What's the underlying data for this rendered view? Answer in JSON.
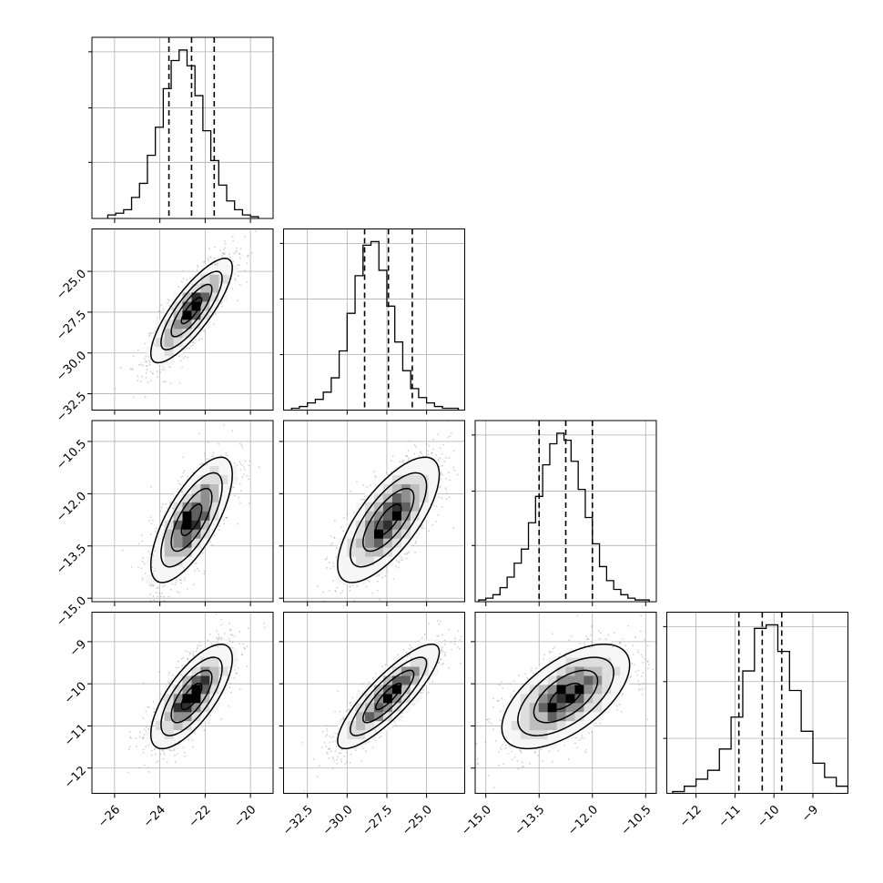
{
  "chart_data": {
    "type": "corner",
    "grid": true,
    "histograms": [
      {
        "param_index": 0,
        "bins": [
          -26.3,
          -25.95,
          -25.6,
          -25.25,
          -24.9,
          -24.55,
          -24.2,
          -23.85,
          -23.5,
          -23.15,
          -22.8,
          -22.45,
          -22.1,
          -21.75,
          -21.4,
          -21.05,
          -20.7,
          -20.35,
          -20.0,
          -19.65
        ],
        "counts": [
          2,
          3,
          5,
          12,
          20,
          36,
          52,
          74,
          90,
          96,
          87,
          70,
          50,
          33,
          19,
          10,
          5,
          2,
          1
        ],
        "quantiles": [
          -23.6,
          -22.6,
          -21.6
        ]
      },
      {
        "param_index": 1,
        "bins": [
          -33.5,
          -33.0,
          -32.5,
          -32.0,
          -31.5,
          -31.0,
          -30.5,
          -30.0,
          -29.5,
          -29.0,
          -28.5,
          -28.0,
          -27.5,
          -27.0,
          -26.5,
          -26.0,
          -25.5,
          -25.0,
          -24.5,
          -24.0,
          -23.5,
          -23.0
        ],
        "counts": [
          1,
          2,
          4,
          6,
          10,
          18,
          33,
          54,
          75,
          92,
          94,
          78,
          58,
          38,
          22,
          12,
          7,
          4,
          2,
          1,
          1
        ],
        "quantiles": [
          -28.9,
          -27.4,
          -25.9
        ]
      },
      {
        "param_index": 2,
        "bins": [
          -15.2,
          -15.0,
          -14.8,
          -14.6,
          -14.4,
          -14.2,
          -14.0,
          -13.8,
          -13.6,
          -13.4,
          -13.2,
          -13.0,
          -12.8,
          -12.6,
          -12.4,
          -12.2,
          -12.0,
          -11.8,
          -11.6,
          -11.4,
          -11.2,
          -11.0,
          -10.8,
          -10.6,
          -10.4
        ],
        "counts": [
          1,
          2,
          4,
          8,
          14,
          22,
          30,
          45,
          60,
          78,
          90,
          96,
          92,
          80,
          64,
          48,
          33,
          20,
          12,
          7,
          4,
          2,
          1,
          1
        ],
        "quantiles": [
          -13.5,
          -12.75,
          -12.0
        ]
      },
      {
        "param_index": 3,
        "bins": [
          -12.6,
          -12.3,
          -12.0,
          -11.7,
          -11.4,
          -11.1,
          -10.8,
          -10.5,
          -10.2,
          -9.9,
          -9.6,
          -9.3,
          -9.0,
          -8.7,
          -8.4,
          -8.1
        ],
        "counts": [
          1,
          4,
          8,
          13,
          25,
          43,
          69,
          93,
          95,
          80,
          58,
          35,
          17,
          9,
          4
        ],
        "quantiles": [
          -10.9,
          -10.3,
          -9.8
        ]
      }
    ],
    "pair_panels": [
      {
        "x_param": 0,
        "y_param": 1,
        "mean": [
          -22.6,
          -27.4
        ],
        "sd": [
          0.9,
          1.6
        ],
        "corr": 0.82
      },
      {
        "x_param": 0,
        "y_param": 2,
        "mean": [
          -22.6,
          -12.75
        ],
        "sd": [
          0.9,
          0.9
        ],
        "corr": 0.72
      },
      {
        "x_param": 1,
        "y_param": 2,
        "mean": [
          -27.4,
          -12.75
        ],
        "sd": [
          1.6,
          0.9
        ],
        "corr": 0.72
      },
      {
        "x_param": 0,
        "y_param": 3,
        "mean": [
          -22.6,
          -10.3
        ],
        "sd": [
          0.9,
          0.62
        ],
        "corr": 0.72
      },
      {
        "x_param": 1,
        "y_param": 3,
        "mean": [
          -27.4,
          -10.3
        ],
        "sd": [
          1.6,
          0.62
        ],
        "corr": 0.85
      },
      {
        "x_param": 2,
        "y_param": 3,
        "mean": [
          -12.75,
          -10.3
        ],
        "sd": [
          0.9,
          0.62
        ],
        "corr": 0.6
      }
    ],
    "axes": [
      {
        "param_index": 0,
        "xlim": [
          -27.0,
          -19.0
        ],
        "ticks": [
          -26,
          -24,
          -22,
          -20
        ],
        "tick_labels": [
          "−26",
          "−24",
          "−22",
          "−20"
        ]
      },
      {
        "param_index": 1,
        "xlim": [
          -34.0,
          -22.6
        ],
        "ticks": [
          -32.5,
          -30.0,
          -27.5,
          -25.0
        ],
        "tick_labels": [
          "−32.5",
          "−30.0",
          "−27.5",
          "−25.0"
        ]
      },
      {
        "param_index": 2,
        "xlim": [
          -15.3,
          -10.2
        ],
        "ticks": [
          -15.0,
          -13.5,
          -12.0,
          -10.5
        ],
        "tick_labels": [
          "−15.0",
          "−13.5",
          "−12.0",
          "−10.5"
        ]
      },
      {
        "param_index": 3,
        "xlim": [
          -12.75,
          -8.1
        ],
        "ticks": [
          -12,
          -11,
          -10,
          -9
        ],
        "tick_labels": [
          "−12",
          "−11",
          "−10",
          "−9"
        ]
      }
    ],
    "y_axes": [
      {
        "row": 1,
        "param_index": 1,
        "ylim": [
          -33.5,
          -22.4
        ],
        "ticks": [
          -32.5,
          -30.0,
          -27.5,
          -25.0
        ],
        "tick_labels": [
          "−32.5",
          "−30.0",
          "−27.5",
          "−25.0"
        ]
      },
      {
        "row": 2,
        "param_index": 2,
        "ylim": [
          -15.1,
          -9.9
        ],
        "ticks": [
          -15.0,
          -13.5,
          -12.0,
          -10.5
        ],
        "tick_labels": [
          "−15.0",
          "−13.5",
          "−12.0",
          "−10.5"
        ]
      },
      {
        "row": 3,
        "param_index": 3,
        "ylim": [
          -12.6,
          -8.3
        ],
        "ticks": [
          -12,
          -11,
          -10,
          -9
        ],
        "tick_labels": [
          "−12",
          "−11",
          "−10",
          "−9"
        ]
      }
    ],
    "title": "",
    "xlabel": "",
    "ylabel": ""
  }
}
